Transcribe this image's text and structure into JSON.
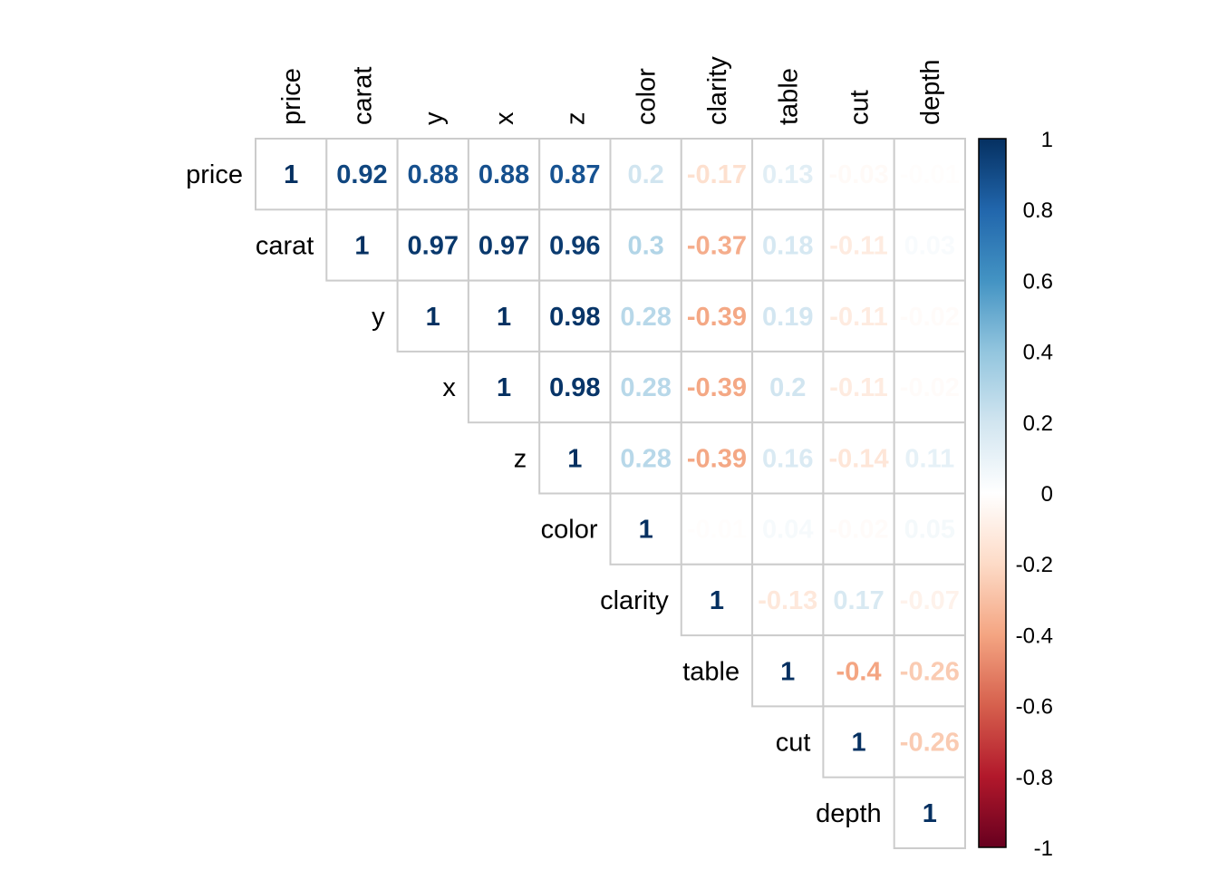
{
  "chart_data": {
    "type": "heatmap",
    "title": "",
    "layout": "upper-triangle",
    "variables": [
      "price",
      "carat",
      "y",
      "x",
      "z",
      "color",
      "clarity",
      "table",
      "cut",
      "depth"
    ],
    "matrix": [
      [
        1,
        0.92,
        0.88,
        0.88,
        0.87,
        0.2,
        -0.17,
        0.13,
        -0.03,
        -0.01
      ],
      [
        null,
        1,
        0.97,
        0.97,
        0.96,
        0.3,
        -0.37,
        0.18,
        -0.11,
        0.03
      ],
      [
        null,
        null,
        1,
        1,
        0.98,
        0.28,
        -0.39,
        0.19,
        -0.11,
        -0.02
      ],
      [
        null,
        null,
        null,
        1,
        0.98,
        0.28,
        -0.39,
        0.2,
        -0.11,
        -0.02
      ],
      [
        null,
        null,
        null,
        null,
        1,
        0.28,
        -0.39,
        0.16,
        -0.14,
        0.11
      ],
      [
        null,
        null,
        null,
        null,
        null,
        1,
        -0.01,
        0.04,
        -0.02,
        0.05
      ],
      [
        null,
        null,
        null,
        null,
        null,
        null,
        1,
        -0.13,
        0.17,
        -0.07
      ],
      [
        null,
        null,
        null,
        null,
        null,
        null,
        null,
        1,
        -0.4,
        -0.26
      ],
      [
        null,
        null,
        null,
        null,
        null,
        null,
        null,
        null,
        1,
        -0.26
      ],
      [
        null,
        null,
        null,
        null,
        null,
        null,
        null,
        null,
        null,
        1
      ]
    ],
    "color_scale": {
      "range": [
        -1,
        1
      ],
      "ticks": [
        "1",
        "0.8",
        "0.6",
        "0.4",
        "0.2",
        "0",
        "-0.2",
        "-0.4",
        "-0.6",
        "-0.8",
        "-1"
      ],
      "stops": [
        "#67001F",
        "#B2182B",
        "#D6604D",
        "#F4A582",
        "#FDDBC7",
        "#FFFFFF",
        "#D1E5F0",
        "#92C5DE",
        "#4393C3",
        "#2166AC",
        "#053061"
      ]
    }
  }
}
